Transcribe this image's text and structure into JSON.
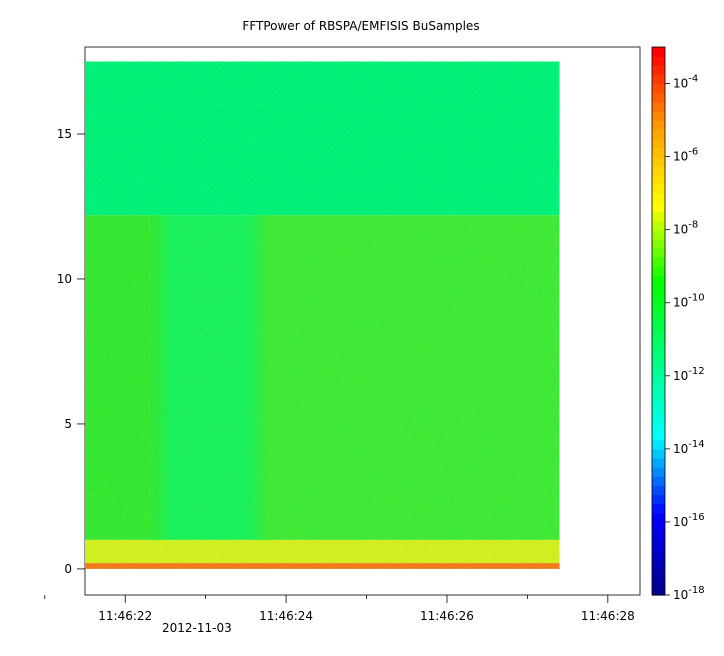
{
  "chart_data": {
    "type": "heatmap",
    "title": "FFTPower of RBSPA/EMFISIS  BuSamples",
    "xlabel": "",
    "ylabel": "",
    "x": {
      "range": [
        "11:46:21.5",
        "11:46:28.4"
      ],
      "tick_labels": [
        "11:46:22",
        "11:46:24",
        "11:46:26",
        "11:46:28"
      ],
      "tick_values_s": [
        22,
        24,
        26,
        28
      ],
      "minor_tick_values_s": [
        21,
        23,
        25,
        27
      ],
      "date_label": "2012-11-03"
    },
    "y": {
      "range": [
        -0.9,
        18.0
      ],
      "tick_labels": [
        "0",
        "5",
        "10",
        "15"
      ],
      "tick_values": [
        0,
        5,
        10,
        15
      ]
    },
    "colorbar": {
      "scale": "log",
      "range": [
        1e-18,
        0.001
      ],
      "tick_base": "10",
      "tick_exponents": [
        "-4",
        "-6",
        "-8",
        "-10",
        "-12",
        "-14",
        "-16",
        "-18"
      ],
      "colors": [
        "#00008c",
        "#0000ff",
        "#00ffff",
        "#00ff80",
        "#00ff00",
        "#ffff00",
        "#ffa000",
        "#ff0000"
      ]
    },
    "data_extent": {
      "x": [
        "11:46:21.5",
        "11:46:27.4"
      ],
      "y": [
        0,
        17.5
      ]
    },
    "regions": [
      {
        "x": [
          "11:46:21.5",
          "11:46:27.4"
        ],
        "y": [
          12.2,
          17.5
        ],
        "log10_power": -12.3,
        "color": "#00f07a"
      },
      {
        "x": [
          "11:46:21.5",
          "11:46:22.3"
        ],
        "y": [
          1.0,
          12.2
        ],
        "log10_power": -10.5,
        "color": "#33e633"
      },
      {
        "x": [
          "11:46:22.3",
          "11:46:23.8"
        ],
        "y": [
          1.0,
          12.2
        ],
        "log10_power": -11.8,
        "color": "#18ef5c"
      },
      {
        "x": [
          "11:46:23.8",
          "11:46:27.4"
        ],
        "y": [
          1.0,
          12.2
        ],
        "log10_power": -10.4,
        "color": "#3ee838"
      },
      {
        "x": [
          "11:46:21.5",
          "11:46:27.4"
        ],
        "y": [
          0.2,
          1.0
        ],
        "log10_power": -8.7,
        "color": "#cfee22"
      },
      {
        "x": [
          "11:46:21.5",
          "11:46:27.4"
        ],
        "y": [
          0,
          0.2
        ],
        "log10_power": -6.3,
        "color": "#f07818"
      }
    ]
  }
}
